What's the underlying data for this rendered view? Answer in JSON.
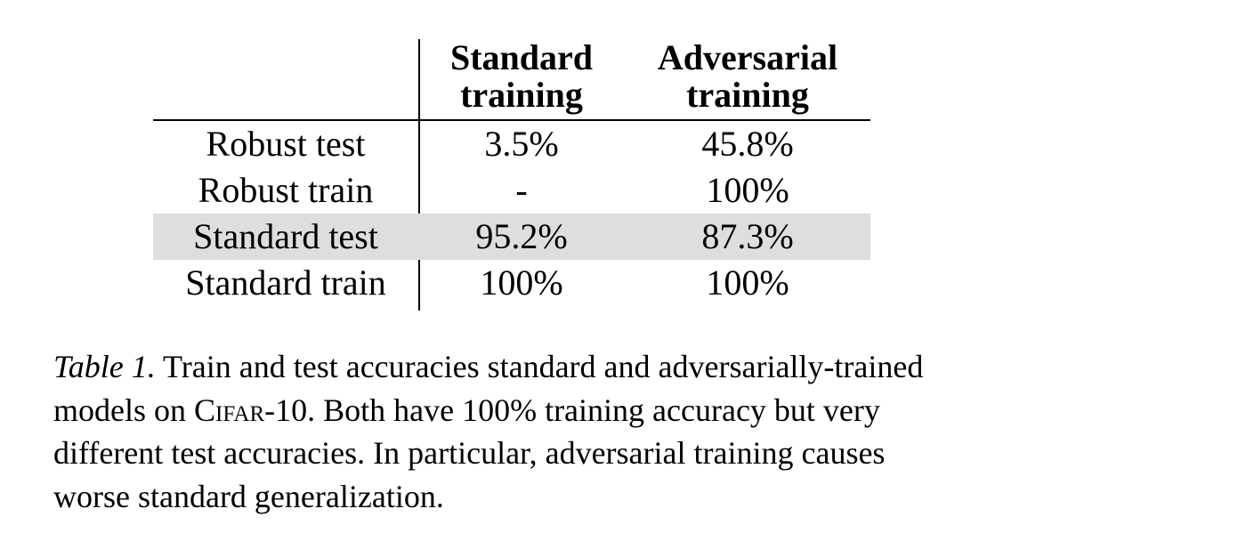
{
  "table": {
    "columns": [
      {
        "line1": "Standard",
        "line2": "training"
      },
      {
        "line1": "Adversarial",
        "line2": "training"
      }
    ],
    "rows": [
      {
        "label": "Robust test",
        "standard": "3.5%",
        "adversarial": "45.8%",
        "highlighted": false
      },
      {
        "label": "Robust train",
        "standard": "-",
        "adversarial": "100%",
        "highlighted": false
      },
      {
        "label": "Standard test",
        "standard": "95.2%",
        "adversarial": "87.3%",
        "highlighted": true
      },
      {
        "label": "Standard train",
        "standard": "100%",
        "adversarial": "100%",
        "highlighted": false
      }
    ]
  },
  "caption": {
    "label": "Table 1.",
    "line1_rest": " Train and test accuracies standard and adversarially-trained",
    "line2_pre": "models on ",
    "dataset": "Cifar-10",
    "line2_post": ". Both have 100% training accuracy but very",
    "line3": "different test accuracies. In particular, adversarial training causes",
    "line4": "worse standard generalization."
  },
  "colors": {
    "highlight_row": "#dedede",
    "text": "#000000",
    "background": "#ffffff"
  }
}
